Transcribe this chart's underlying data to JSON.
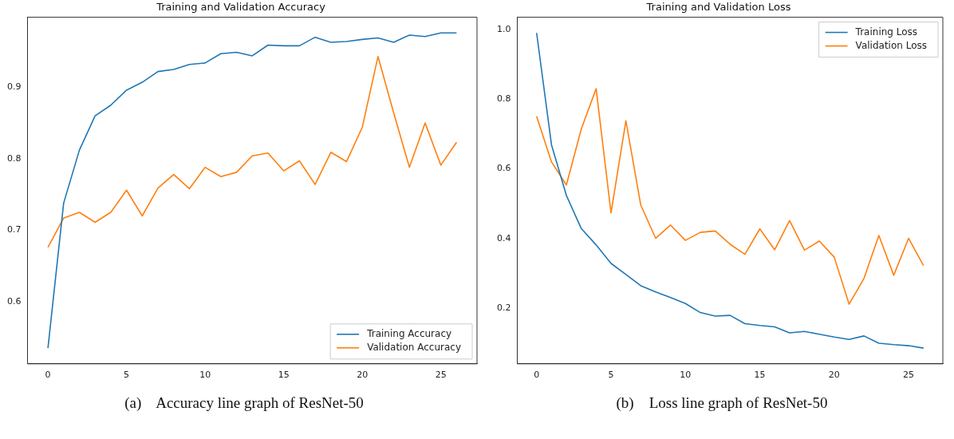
{
  "chart_data": [
    {
      "type": "line",
      "title": "Training and Validation Accuracy",
      "x": [
        0,
        1,
        2,
        3,
        4,
        5,
        6,
        7,
        8,
        9,
        10,
        11,
        12,
        13,
        14,
        15,
        16,
        17,
        18,
        19,
        20,
        21,
        22,
        23,
        24,
        25,
        26
      ],
      "series": [
        {
          "name": "Training Accuracy",
          "color": "#1f77b4",
          "values": [
            0.535,
            0.738,
            0.812,
            0.86,
            0.875,
            0.896,
            0.907,
            0.922,
            0.925,
            0.932,
            0.934,
            0.947,
            0.949,
            0.944,
            0.959,
            0.958,
            0.958,
            0.97,
            0.963,
            0.964,
            0.967,
            0.969,
            0.963,
            0.973,
            0.971,
            0.976,
            0.976
          ]
        },
        {
          "name": "Validation Accuracy",
          "color": "#ff7f0e",
          "values": [
            0.676,
            0.717,
            0.725,
            0.711,
            0.725,
            0.756,
            0.72,
            0.759,
            0.778,
            0.758,
            0.788,
            0.775,
            0.781,
            0.804,
            0.808,
            0.783,
            0.797,
            0.764,
            0.809,
            0.796,
            0.844,
            0.943,
            0.864,
            0.788,
            0.85,
            0.791,
            0.823
          ]
        }
      ],
      "xlim": [
        -1.3,
        27.3
      ],
      "ylim": [
        0.513,
        0.998
      ],
      "xticks": [
        0,
        5,
        10,
        15,
        20,
        25
      ],
      "yticks": [
        0.6,
        0.7,
        0.8,
        0.9
      ],
      "grid": false,
      "legend": "bottom right",
      "annotations": [
        "(a)    Accuracy line graph of ResNet-50"
      ]
    },
    {
      "type": "line",
      "title": "Training and Validation Loss",
      "x": [
        0,
        1,
        2,
        3,
        4,
        5,
        6,
        7,
        8,
        9,
        10,
        11,
        12,
        13,
        14,
        15,
        16,
        17,
        18,
        19,
        20,
        21,
        22,
        23,
        24,
        25,
        26
      ],
      "series": [
        {
          "name": "Training Loss",
          "color": "#1f77b4",
          "values": [
            0.99,
            0.669,
            0.524,
            0.429,
            0.382,
            0.329,
            0.297,
            0.265,
            0.247,
            0.231,
            0.214,
            0.188,
            0.178,
            0.18,
            0.156,
            0.151,
            0.147,
            0.13,
            0.134,
            0.126,
            0.118,
            0.111,
            0.121,
            0.1,
            0.096,
            0.093,
            0.086
          ]
        },
        {
          "name": "Validation Loss",
          "color": "#ff7f0e",
          "values": [
            0.751,
            0.62,
            0.554,
            0.714,
            0.83,
            0.474,
            0.738,
            0.496,
            0.401,
            0.439,
            0.395,
            0.418,
            0.422,
            0.384,
            0.355,
            0.428,
            0.368,
            0.452,
            0.367,
            0.393,
            0.347,
            0.212,
            0.286,
            0.409,
            0.295,
            0.401,
            0.323
          ]
        }
      ],
      "xlim": [
        -1.3,
        27.3
      ],
      "ylim": [
        0.041,
        1.035
      ],
      "xticks": [
        0,
        5,
        10,
        15,
        20,
        25
      ],
      "yticks": [
        0.2,
        0.4,
        0.6,
        0.8,
        {
          "value": 1.0,
          "label": "1.0"
        }
      ],
      "grid": false,
      "legend": "top right",
      "annotations": [
        "(b)    Loss line graph of ResNet-50"
      ]
    }
  ]
}
